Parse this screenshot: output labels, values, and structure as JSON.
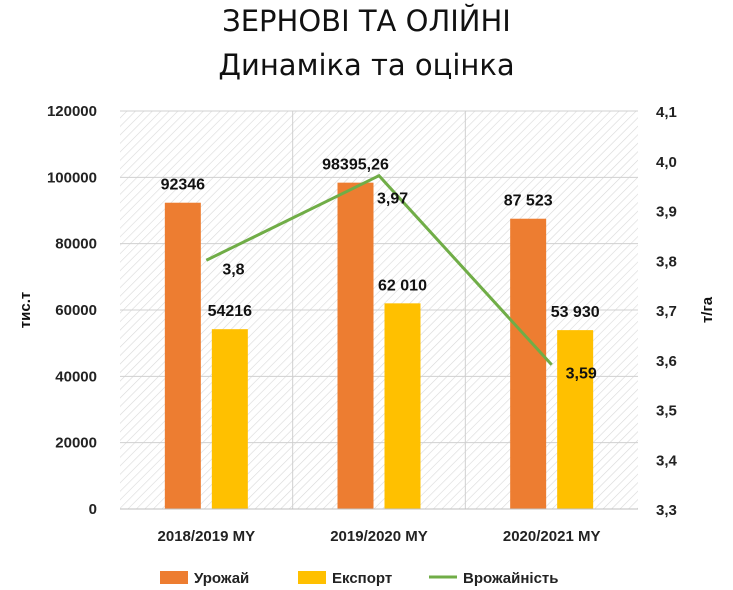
{
  "chart_data": {
    "type": "bar",
    "title": "ЗЕРНОВІ ТА ОЛІЙНІ",
    "subtitle": "Динаміка та оцінка",
    "categories": [
      "2018/2019 MY",
      "2019/2020 MY",
      "2020/2021 MY"
    ],
    "ylabel": "тис.т",
    "y2label": "т/га",
    "ylim": [
      0,
      120000
    ],
    "y2lim": [
      3.3,
      4.1
    ],
    "yticks": [
      "0",
      "20000",
      "40000",
      "60000",
      "80000",
      "100000",
      "120000"
    ],
    "y2ticks": [
      "3,3",
      "3,4",
      "3,5",
      "3,6",
      "3,7",
      "3,8",
      "3,9",
      "4,0",
      "4,1"
    ],
    "series": [
      {
        "name": "Урожай",
        "type": "bar",
        "color": "#ED7D31",
        "values": [
          92346,
          98395.26,
          87523
        ],
        "labels": [
          "92346",
          "98395,26",
          "87 523"
        ]
      },
      {
        "name": "Експорт",
        "type": "bar",
        "color": "#FFC000",
        "values": [
          54216,
          62010,
          53930
        ],
        "labels": [
          "54216",
          "62 010",
          "53 930"
        ]
      },
      {
        "name": "Врожайність",
        "type": "line",
        "axis": "secondary",
        "color": "#70AD47",
        "values": [
          3.8,
          3.97,
          3.59
        ],
        "labels": [
          "3,8",
          "3,97",
          "3,59"
        ]
      }
    ],
    "grid": true,
    "legend": "bottom"
  }
}
